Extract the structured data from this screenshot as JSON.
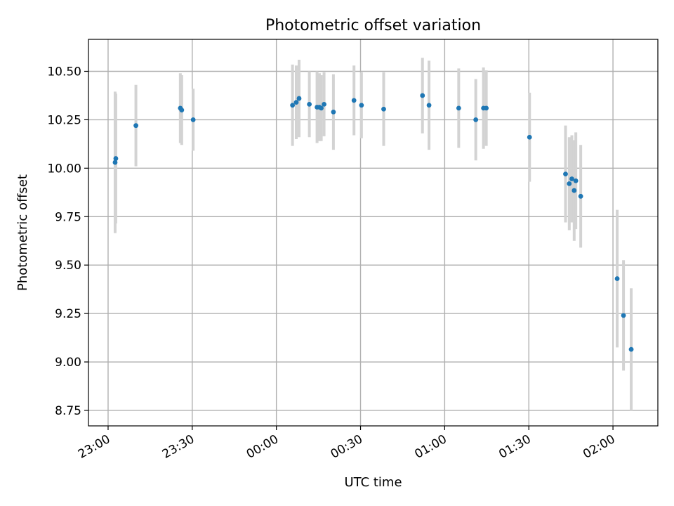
{
  "chart_data": {
    "type": "scatter",
    "title": "Photometric offset variation",
    "xlabel": "UTC time",
    "ylabel": "Photometric offset",
    "x_unit": "UTC",
    "xlim": [
      "22:53",
      "02:16"
    ],
    "ylim": [
      8.67,
      10.665
    ],
    "grid": true,
    "x_ticks": [
      {
        "label": "23:00",
        "value": "23:00"
      },
      {
        "label": "23:30",
        "value": "23:30"
      },
      {
        "label": "00:00",
        "value": "00:00"
      },
      {
        "label": "00:30",
        "value": "00:30"
      },
      {
        "label": "01:00",
        "value": "01:00"
      },
      {
        "label": "01:30",
        "value": "01:30"
      },
      {
        "label": "02:00",
        "value": "02:00"
      }
    ],
    "y_ticks": [
      {
        "label": "8.75",
        "value": 8.75
      },
      {
        "label": "9.00",
        "value": 9.0
      },
      {
        "label": "9.25",
        "value": 9.25
      },
      {
        "label": "9.50",
        "value": 9.5
      },
      {
        "label": "9.75",
        "value": 9.75
      },
      {
        "label": "10.00",
        "value": 10.0
      },
      {
        "label": "10.25",
        "value": 10.25
      },
      {
        "label": "10.50",
        "value": 10.5
      }
    ],
    "colors": {
      "marker": "#1f77b4",
      "errorbar": "#d3d3d3",
      "grid": "#b0b0b0"
    },
    "series": [
      {
        "points": [
          {
            "x": "23:02:30",
            "y": 10.03,
            "err": 0.365
          },
          {
            "x": "23:02:45",
            "y": 10.05,
            "err": 0.335
          },
          {
            "x": "23:09:55",
            "y": 10.22,
            "err": 0.21
          },
          {
            "x": "23:25:45",
            "y": 10.31,
            "err": 0.18
          },
          {
            "x": "23:26:15",
            "y": 10.3,
            "err": 0.18
          },
          {
            "x": "23:30:20",
            "y": 10.25,
            "err": 0.16
          },
          {
            "x": "00:05:45",
            "y": 10.325,
            "err": 0.21
          },
          {
            "x": "00:07:05",
            "y": 10.34,
            "err": 0.19
          },
          {
            "x": "00:08:05",
            "y": 10.36,
            "err": 0.2
          },
          {
            "x": "00:11:45",
            "y": 10.33,
            "err": 0.17
          },
          {
            "x": "00:14:30",
            "y": 10.315,
            "err": 0.185
          },
          {
            "x": "00:15:20",
            "y": 10.315,
            "err": 0.175
          },
          {
            "x": "00:16:00",
            "y": 10.31,
            "err": 0.17
          },
          {
            "x": "00:17:00",
            "y": 10.33,
            "err": 0.165
          },
          {
            "x": "00:20:20",
            "y": 10.29,
            "err": 0.195
          },
          {
            "x": "00:27:40",
            "y": 10.35,
            "err": 0.18
          },
          {
            "x": "00:30:20",
            "y": 10.325,
            "err": 0.17
          },
          {
            "x": "00:38:15",
            "y": 10.305,
            "err": 0.19
          },
          {
            "x": "00:52:05",
            "y": 10.375,
            "err": 0.195
          },
          {
            "x": "00:54:25",
            "y": 10.325,
            "err": 0.23
          },
          {
            "x": "01:05:00",
            "y": 10.31,
            "err": 0.205
          },
          {
            "x": "01:11:05",
            "y": 10.25,
            "err": 0.21
          },
          {
            "x": "01:13:50",
            "y": 10.31,
            "err": 0.21
          },
          {
            "x": "01:14:50",
            "y": 10.31,
            "err": 0.195
          },
          {
            "x": "01:30:15",
            "y": 10.16,
            "err": 0.23
          },
          {
            "x": "01:43:05",
            "y": 9.97,
            "err": 0.25
          },
          {
            "x": "01:44:25",
            "y": 9.92,
            "err": 0.24
          },
          {
            "x": "01:45:20",
            "y": 9.945,
            "err": 0.225
          },
          {
            "x": "01:46:10",
            "y": 9.885,
            "err": 0.26
          },
          {
            "x": "01:46:45",
            "y": 9.935,
            "err": 0.25
          },
          {
            "x": "01:48:30",
            "y": 9.855,
            "err": 0.265
          },
          {
            "x": "02:01:30",
            "y": 9.43,
            "err": 0.355
          },
          {
            "x": "02:03:45",
            "y": 9.24,
            "err": 0.285
          },
          {
            "x": "02:06:30",
            "y": 9.065,
            "err": 0.315
          }
        ]
      }
    ]
  }
}
